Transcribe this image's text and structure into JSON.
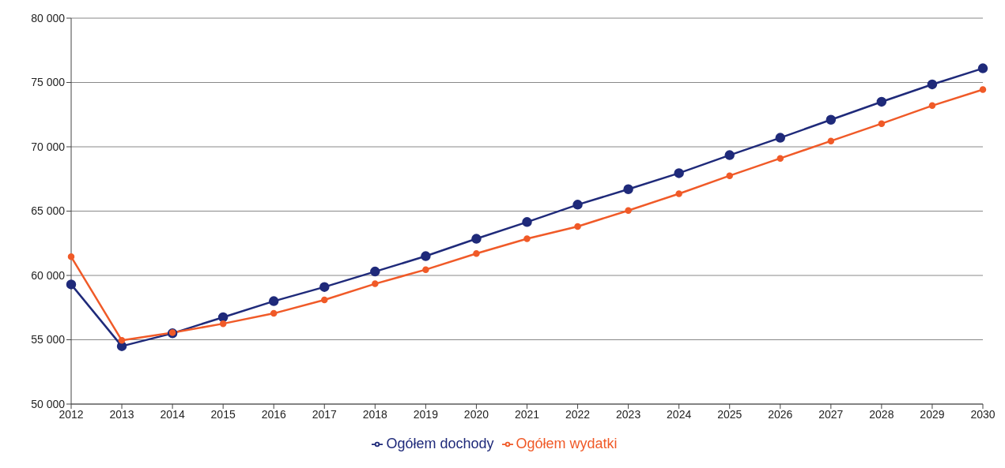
{
  "chart_data": {
    "type": "line",
    "categories": [
      "2012",
      "2013",
      "2014",
      "2015",
      "2016",
      "2017",
      "2018",
      "2019",
      "2020",
      "2021",
      "2022",
      "2023",
      "2024",
      "2025",
      "2026",
      "2027",
      "2028",
      "2029",
      "2030"
    ],
    "series": [
      {
        "name": "Ogółem dochody",
        "color": "#1f2a7a",
        "values": [
          59300,
          54500,
          55500,
          56750,
          58000,
          59100,
          60300,
          61500,
          62850,
          64150,
          65500,
          66700,
          67950,
          69350,
          70700,
          72100,
          73500,
          74850,
          76100
        ]
      },
      {
        "name": "Ogółem wydatki",
        "color": "#f05a28",
        "values": [
          61450,
          54950,
          55550,
          56250,
          57050,
          58100,
          59350,
          60450,
          61700,
          62850,
          63800,
          65050,
          66350,
          67750,
          69100,
          70450,
          71800,
          73200,
          74450
        ]
      }
    ],
    "ylim": [
      50000,
      80000
    ],
    "yticks": [
      {
        "value": 50000,
        "label": "50 000"
      },
      {
        "value": 55000,
        "label": "55 000"
      },
      {
        "value": 60000,
        "label": "60 000"
      },
      {
        "value": 65000,
        "label": "65 000"
      },
      {
        "value": 70000,
        "label": "70 000"
      },
      {
        "value": 75000,
        "label": "75 000"
      },
      {
        "value": 80000,
        "label": "80 000"
      }
    ],
    "grid": "y",
    "legend": "bottom",
    "marker": "circle",
    "line_style": "solid"
  }
}
